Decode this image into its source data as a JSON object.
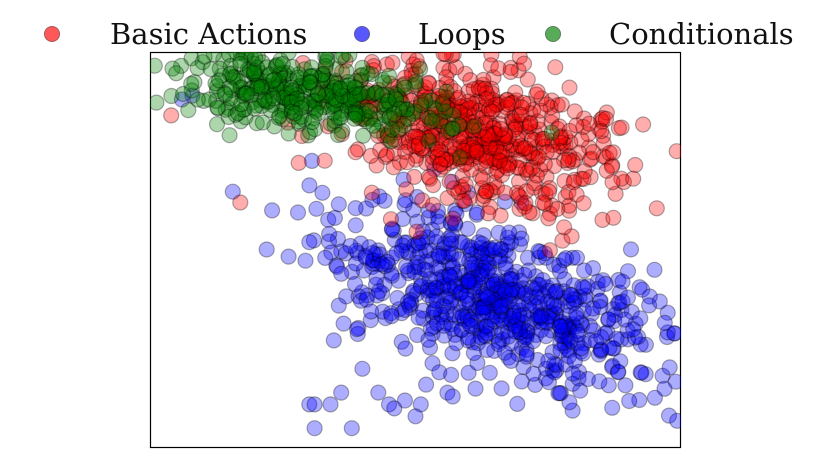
{
  "chart_data": {
    "type": "scatter",
    "title": "",
    "xlabel": "",
    "ylabel": "",
    "grid": false,
    "axis_ticks_shown": false,
    "xlim": [
      0,
      100
    ],
    "ylim": [
      0,
      100
    ],
    "legend_position": "top",
    "series": [
      {
        "name": "Basic Actions",
        "color": "#ff0000",
        "cluster": {
          "center": [
            62,
            79
          ],
          "spread": [
            14,
            8
          ],
          "rotation_deg": -28,
          "count": 600
        },
        "points": [
          {
            "x": 4,
            "y": 84
          },
          {
            "x": 17,
            "y": 62
          },
          {
            "x": 70,
            "y": 86
          },
          {
            "x": 73,
            "y": 90
          },
          {
            "x": 79,
            "y": 91
          },
          {
            "x": 80,
            "y": 85
          },
          {
            "x": 85,
            "y": 80
          },
          {
            "x": 86,
            "y": 70
          },
          {
            "x": 91,
            "y": 68
          },
          {
            "x": 74,
            "y": 62
          },
          {
            "x": 75,
            "y": 58
          },
          {
            "x": 28,
            "y": 72
          }
        ]
      },
      {
        "name": "Loops",
        "color": "#0000ff",
        "cluster": {
          "center": [
            64,
            38
          ],
          "spread": [
            17,
            8
          ],
          "rotation_deg": -30,
          "count": 700
        },
        "points": [
          {
            "x": 30,
            "y": 52
          },
          {
            "x": 23,
            "y": 60
          },
          {
            "x": 6,
            "y": 88
          },
          {
            "x": 8,
            "y": 89
          },
          {
            "x": 39,
            "y": 30
          },
          {
            "x": 40,
            "y": 20
          },
          {
            "x": 43,
            "y": 14
          },
          {
            "x": 45,
            "y": 11
          },
          {
            "x": 52,
            "y": 16
          },
          {
            "x": 56,
            "y": 14
          },
          {
            "x": 60,
            "y": 19
          },
          {
            "x": 30,
            "y": 11
          },
          {
            "x": 36,
            "y": 14
          },
          {
            "x": 31,
            "y": 11
          },
          {
            "x": 46,
            "y": 10
          },
          {
            "x": 51,
            "y": 11
          },
          {
            "x": 34,
            "y": 11
          },
          {
            "x": 38,
            "y": 5
          },
          {
            "x": 31,
            "y": 5
          },
          {
            "x": 50,
            "y": 8
          },
          {
            "x": 48,
            "y": 12
          },
          {
            "x": 94,
            "y": 36
          },
          {
            "x": 96,
            "y": 37
          },
          {
            "x": 89,
            "y": 37
          },
          {
            "x": 90,
            "y": 38
          },
          {
            "x": 84,
            "y": 27
          },
          {
            "x": 91,
            "y": 30
          },
          {
            "x": 95,
            "y": 45
          },
          {
            "x": 89,
            "y": 42
          },
          {
            "x": 36,
            "y": 44
          },
          {
            "x": 33,
            "y": 48
          },
          {
            "x": 57,
            "y": 13
          },
          {
            "x": 61,
            "y": 24
          },
          {
            "x": 64,
            "y": 19
          },
          {
            "x": 68,
            "y": 22
          },
          {
            "x": 75,
            "y": 22
          },
          {
            "x": 80,
            "y": 22
          },
          {
            "x": 85,
            "y": 28
          }
        ]
      },
      {
        "name": "Conditionals",
        "color": "#008000",
        "cluster": {
          "center": [
            30,
            89
          ],
          "spread": [
            13,
            4.5
          ],
          "rotation_deg": -12,
          "count": 380
        },
        "points": [
          {
            "x": 17,
            "y": 97
          },
          {
            "x": 9,
            "y": 88
          },
          {
            "x": 15,
            "y": 79
          },
          {
            "x": 25,
            "y": 97
          },
          {
            "x": 40,
            "y": 96
          },
          {
            "x": 45,
            "y": 94
          },
          {
            "x": 48,
            "y": 91
          }
        ]
      }
    ]
  }
}
